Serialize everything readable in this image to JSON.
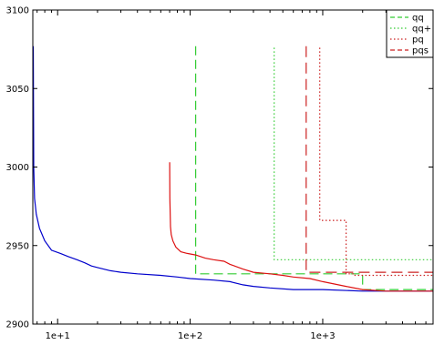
{
  "chart_data": {
    "type": "line",
    "title": "",
    "xlabel": "",
    "ylabel": "",
    "x_scale": "log",
    "xlim": [
      6.5,
      6800
    ],
    "ylim": [
      2900,
      3100
    ],
    "x_ticks": [
      {
        "value": 10,
        "label": "1e+1"
      },
      {
        "value": 100,
        "label": "1e+2"
      },
      {
        "value": 1000,
        "label": "1e+3"
      }
    ],
    "y_ticks": [
      {
        "value": 2900,
        "label": "2900"
      },
      {
        "value": 2950,
        "label": "2950"
      },
      {
        "value": 3000,
        "label": "3000"
      },
      {
        "value": 3050,
        "label": "3050"
      },
      {
        "value": 3100,
        "label": "3100"
      }
    ],
    "grid": false,
    "legend_position": "top-right",
    "series": [
      {
        "key": "blue",
        "color": "#0000cc",
        "dash": "solid",
        "in_legend": false,
        "x": [
          6.55,
          6.6,
          6.7,
          6.9,
          7.3,
          8.0,
          9.0,
          10.5,
          12,
          14,
          16,
          18,
          20,
          25,
          30,
          40,
          60,
          80,
          100,
          150,
          200,
          250,
          300,
          400,
          600,
          1000,
          2000,
          6800
        ],
        "y": [
          3077,
          3000,
          2980,
          2970,
          2961,
          2953,
          2947,
          2945,
          2943,
          2941,
          2939,
          2937,
          2936,
          2934,
          2933,
          2932,
          2931,
          2930,
          2929,
          2928,
          2927,
          2925,
          2924,
          2923,
          2922,
          2922,
          2921,
          2921
        ]
      },
      {
        "key": "qq",
        "name": "qq",
        "color": "#33cc33",
        "dash": "10,5",
        "in_legend": true,
        "x": [
          110,
          110,
          110,
          2000,
          2000,
          6800
        ],
        "y": [
          3077,
          2933,
          2932,
          2932,
          2922,
          2922
        ]
      },
      {
        "key": "qqplus",
        "name": "qq+",
        "color": "#33cc33",
        "dash": "1.5,2.5",
        "in_legend": true,
        "x": [
          430,
          430,
          6800
        ],
        "y": [
          3076,
          2941,
          2941
        ]
      },
      {
        "key": "pq",
        "name": "pq",
        "color": "#cc2222",
        "dash": "1.5,2.5",
        "in_legend": true,
        "x": [
          950,
          950,
          1050,
          1500,
          1500,
          1750,
          1750,
          6800
        ],
        "y": [
          3076,
          2966,
          2966,
          2966,
          2932,
          2932,
          2931,
          2931
        ]
      },
      {
        "key": "pqs",
        "name": "pqs",
        "color": "#cc2222",
        "dash": "12,6",
        "in_legend": true,
        "x": [
          750,
          750,
          6800
        ],
        "y": [
          3077,
          2933,
          2933
        ]
      },
      {
        "key": "red",
        "color": "#dd1111",
        "dash": "solid",
        "in_legend": false,
        "x": [
          70,
          70.3,
          71,
          72,
          74,
          78,
          85,
          95,
          110,
          130,
          150,
          180,
          200,
          250,
          300,
          400,
          500,
          600,
          800,
          1000,
          1500,
          2000,
          3000,
          6800
        ],
        "y": [
          3003,
          2980,
          2962,
          2957,
          2953,
          2949,
          2946,
          2945,
          2944,
          2942,
          2941,
          2940,
          2938,
          2935,
          2933,
          2932,
          2931,
          2930,
          2929,
          2927,
          2924,
          2922,
          2921,
          2921
        ]
      }
    ]
  }
}
